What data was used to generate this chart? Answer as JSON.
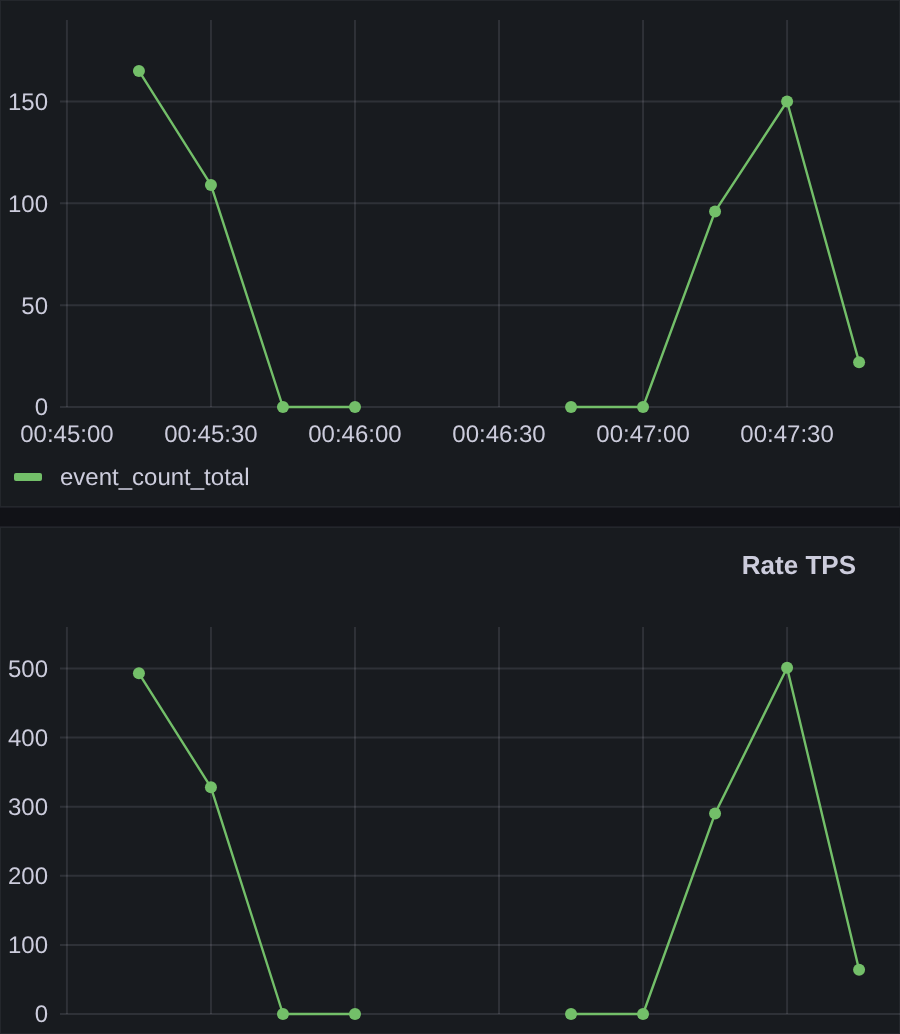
{
  "chart_data": [
    {
      "type": "line",
      "x": [
        0.754167,
        0.758333,
        0.7625,
        0.766667,
        0.770833,
        0.775,
        0.779167,
        0.783333,
        0.7875,
        0.791667,
        0.795833
      ],
      "series": [
        {
          "name": "event_count_total",
          "color": "#73bf69",
          "values": [
            165,
            109,
            0,
            0,
            null,
            null,
            0,
            0,
            96,
            150,
            22
          ]
        }
      ],
      "xlim": [
        0.7496,
        0.7982
      ],
      "xticks": [
        {
          "value": 0.75,
          "label": "00:45:00"
        },
        {
          "value": 0.758333,
          "label": "00:45:30"
        },
        {
          "value": 0.766667,
          "label": "00:46:00"
        },
        {
          "value": 0.775,
          "label": "00:46:30"
        },
        {
          "value": 0.783333,
          "label": "00:47:00"
        },
        {
          "value": 0.791667,
          "label": "00:47:30"
        }
      ],
      "ylim": [
        0,
        190
      ],
      "yticks": [
        0,
        50,
        100,
        150
      ],
      "grid": true,
      "legend": "bottom",
      "marker": "circle",
      "line_style": "solid"
    },
    {
      "type": "line",
      "title": "Rate TPS",
      "x": [
        0.754167,
        0.758333,
        0.7625,
        0.766667,
        0.770833,
        0.775,
        0.779167,
        0.783333,
        0.7875,
        0.791667,
        0.795833
      ],
      "series": [
        {
          "color": "#73bf69",
          "values": [
            493,
            328,
            0,
            0,
            null,
            null,
            0,
            0,
            290,
            501,
            64
          ]
        }
      ],
      "xlim": [
        0.7496,
        0.7982
      ],
      "xticks": [
        {
          "value": 0.75,
          "label": null
        },
        {
          "value": 0.758333,
          "label": null
        },
        {
          "value": 0.766667,
          "label": null
        },
        {
          "value": 0.775,
          "label": null
        },
        {
          "value": 0.783333,
          "label": null
        },
        {
          "value": 0.791667,
          "label": null
        }
      ],
      "ylim": [
        0,
        560
      ],
      "yticks": [
        0,
        100,
        200,
        300,
        400,
        500
      ],
      "grid": true,
      "tick_labels": "y",
      "marker": "circle",
      "line_style": "solid"
    }
  ]
}
